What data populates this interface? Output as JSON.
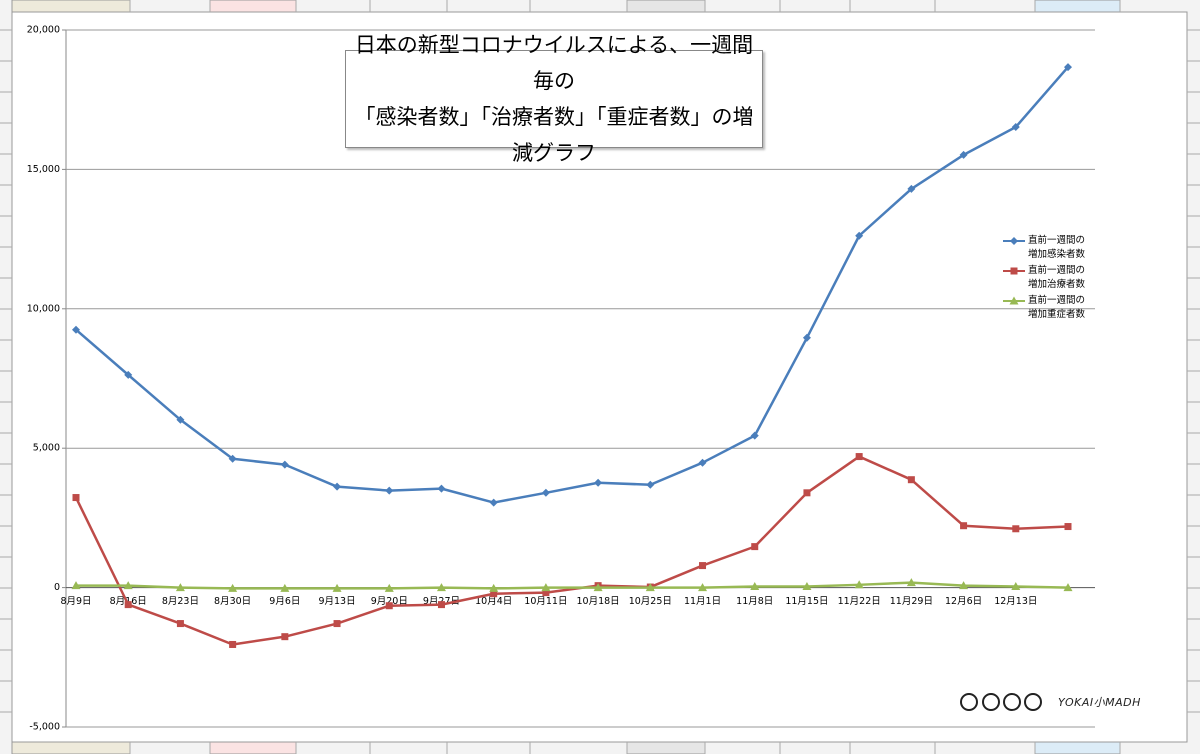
{
  "chart_data": {
    "type": "line",
    "title": "日本の新型コロナウイルスによる、一週間毎の\n「感染者数」「治療者数」「重症者数」の増減グラフ",
    "categories": [
      "8月9日",
      "8月16日",
      "8月23日",
      "8月30日",
      "9月6日",
      "9月13日",
      "9月20日",
      "9月27日",
      "10月4日",
      "10月11日",
      "10月18日",
      "10月25日",
      "11月1日",
      "11月8日",
      "11月15日",
      "11月22日",
      "11月29日",
      "12月6日",
      "12月13日",
      null
    ],
    "series": [
      {
        "name": "直前一週間の\n増加感染者数",
        "color": "#4a7ebb",
        "marker": "diamond",
        "values": [
          9250,
          7630,
          6020,
          4620,
          4410,
          3620,
          3480,
          3550,
          3050,
          3400,
          3760,
          3690,
          4480,
          5450,
          8960,
          12620,
          14300,
          15520,
          16520,
          18670
        ]
      },
      {
        "name": "直前一週間の\n増加治療者数",
        "color": "#be4b48",
        "marker": "square",
        "values": [
          3230,
          -610,
          -1290,
          -2040,
          -1760,
          -1290,
          -650,
          -610,
          -220,
          -180,
          70,
          20,
          790,
          1470,
          3400,
          4700,
          3870,
          2220,
          2110,
          2190
        ]
      },
      {
        "name": "直前一週間の\n増加重症者数",
        "color": "#98b954",
        "marker": "triangle",
        "values": [
          70,
          70,
          0,
          -30,
          -30,
          -30,
          -30,
          0,
          -30,
          0,
          0,
          0,
          0,
          40,
          40,
          100,
          180,
          70,
          40,
          0
        ]
      }
    ],
    "ylim": [
      -5000,
      20000
    ],
    "yticks": [
      {
        "value": -5000,
        "label": "-5,000"
      },
      0,
      {
        "value": 5000,
        "label": "5,000"
      },
      {
        "value": 10000,
        "label": "10,000"
      },
      {
        "value": 15000,
        "label": "15,000"
      },
      {
        "value": 20000,
        "label": "20,000"
      }
    ],
    "grid": true,
    "legend": "right"
  },
  "watermark": "YOKAI小MADH"
}
